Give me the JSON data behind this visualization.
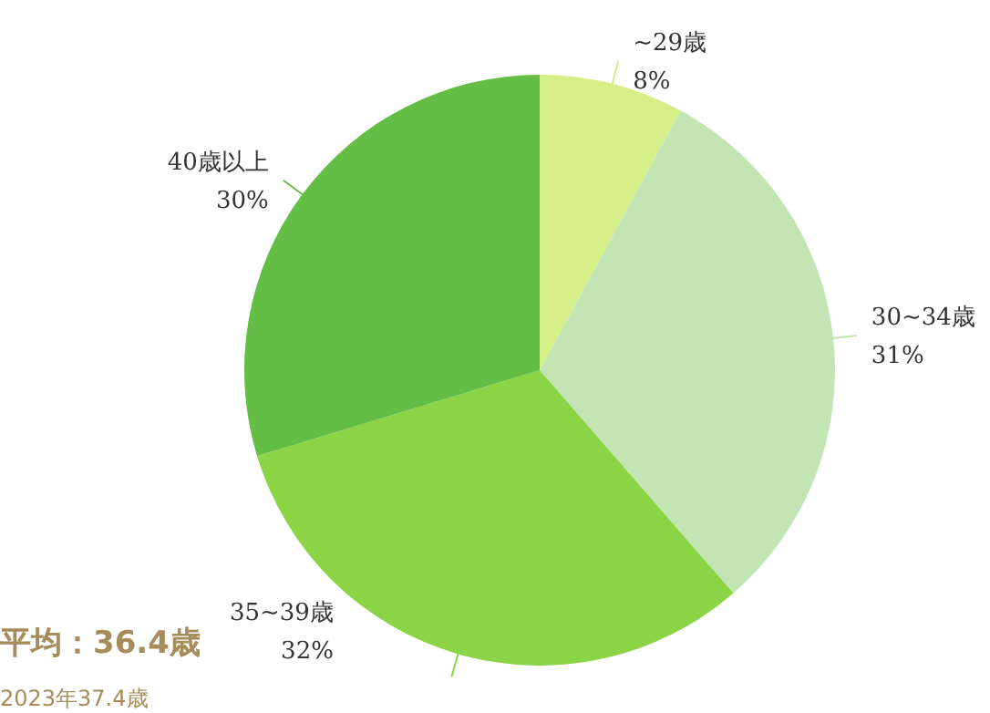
{
  "chart_data": {
    "type": "pie",
    "categories": [
      "~29歳",
      "30~34歳",
      "35~39歳",
      "40歳以上"
    ],
    "values": [
      8,
      31,
      32,
      30
    ],
    "colors": [
      "#d5ee88",
      "#c2e5b3",
      "#8bd446",
      "#64bd44"
    ],
    "value_labels": [
      "8%",
      "31%",
      "32%",
      "30%"
    ],
    "annotations": [
      "平均：36.4歳",
      "2023年37.4歳"
    ]
  }
}
